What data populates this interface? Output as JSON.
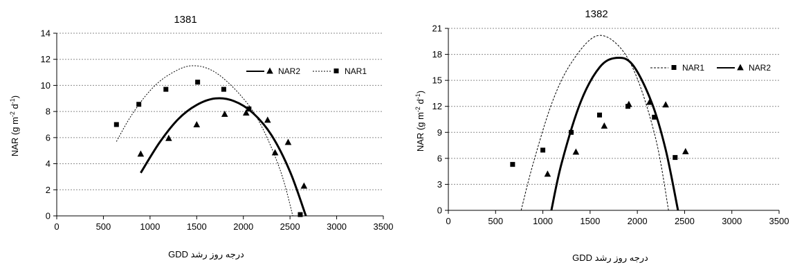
{
  "chart_data": [
    {
      "type": "scatter",
      "title": "1381",
      "xlabel": "درجه روز رشد   GDD",
      "ylabel": "NAR (g m-2 d-1)",
      "xlim": [
        0,
        3500
      ],
      "ylim": [
        0,
        14
      ],
      "xticks": [
        "0",
        "500",
        "1000",
        "1500",
        "2000",
        "2500",
        "3000",
        "3500"
      ],
      "yticks": [
        "0",
        "2",
        "4",
        "6",
        "8",
        "10",
        "12",
        "14"
      ],
      "grid": "horizontal",
      "legend_placement": "top-right",
      "series": [
        {
          "name": "NAR1",
          "marker": "square",
          "line": "dotted",
          "points": [
            [
              640,
              7.0
            ],
            [
              880,
              8.55
            ],
            [
              1170,
              9.7
            ],
            [
              1510,
              10.25
            ],
            [
              1790,
              9.7
            ],
            [
              2060,
              8.2
            ],
            [
              2610,
              0.1
            ]
          ],
          "curve": [
            [
              640,
              5.7
            ],
            [
              800,
              7.7
            ],
            [
              1000,
              9.6
            ],
            [
              1200,
              10.8
            ],
            [
              1440,
              11.5
            ],
            [
              1700,
              11.0
            ],
            [
              2000,
              9.0
            ],
            [
              2200,
              6.8
            ],
            [
              2400,
              3.4
            ],
            [
              2530,
              0.0
            ]
          ]
        },
        {
          "name": "NAR2",
          "marker": "triangle",
          "line": "solid",
          "points": [
            [
              900,
              4.75
            ],
            [
              1200,
              5.95
            ],
            [
              1500,
              7.0
            ],
            [
              1800,
              7.8
            ],
            [
              2030,
              7.9
            ],
            [
              2260,
              7.35
            ],
            [
              2340,
              4.85
            ],
            [
              2480,
              5.65
            ],
            [
              2650,
              2.3
            ]
          ],
          "curve": [
            [
              900,
              3.3
            ],
            [
              1100,
              5.6
            ],
            [
              1300,
              7.4
            ],
            [
              1500,
              8.5
            ],
            [
              1700,
              9.0
            ],
            [
              1900,
              8.8
            ],
            [
              2100,
              7.9
            ],
            [
              2300,
              6.2
            ],
            [
              2500,
              3.4
            ],
            [
              2670,
              0.0
            ]
          ]
        }
      ]
    },
    {
      "type": "scatter",
      "title": "1382",
      "xlabel": "درجه روز رشد   GDD",
      "ylabel": "NAR (g m-2 d-1)",
      "xlim": [
        0,
        3500
      ],
      "ylim": [
        0,
        21
      ],
      "xticks": [
        "0",
        "500",
        "1000",
        "1500",
        "2000",
        "2500",
        "3000",
        "3500"
      ],
      "yticks": [
        "0",
        "3",
        "6",
        "9",
        "12",
        "15",
        "18",
        "21"
      ],
      "grid": "horizontal",
      "legend_placement": "top-right",
      "series": [
        {
          "name": "NAR1",
          "marker": "square",
          "line": "dashed",
          "points": [
            [
              680,
              5.3
            ],
            [
              1000,
              6.95
            ],
            [
              1300,
              9.0
            ],
            [
              1600,
              11.0
            ],
            [
              1900,
              12.0
            ],
            [
              2180,
              10.75
            ],
            [
              2400,
              6.1
            ]
          ],
          "curve": [
            [
              770,
              0.0
            ],
            [
              900,
              5.5
            ],
            [
              1100,
              12.5
            ],
            [
              1300,
              17.0
            ],
            [
              1560,
              20.1
            ],
            [
              1800,
              19.0
            ],
            [
              2000,
              15.2
            ],
            [
              2200,
              8.0
            ],
            [
              2330,
              0.0
            ]
          ]
        },
        {
          "name": "NAR2",
          "marker": "triangle",
          "line": "solid",
          "points": [
            [
              1050,
              4.2
            ],
            [
              1350,
              6.75
            ],
            [
              1650,
              9.75
            ],
            [
              1910,
              12.25
            ],
            [
              2130,
              12.5
            ],
            [
              2300,
              12.2
            ],
            [
              2510,
              6.8
            ]
          ],
          "curve": [
            [
              1090,
              0.0
            ],
            [
              1200,
              5.5
            ],
            [
              1400,
              12.5
            ],
            [
              1600,
              16.5
            ],
            [
              1780,
              17.6
            ],
            [
              1950,
              16.8
            ],
            [
              2150,
              12.5
            ],
            [
              2300,
              7.0
            ],
            [
              2430,
              0.0
            ]
          ]
        }
      ]
    }
  ]
}
